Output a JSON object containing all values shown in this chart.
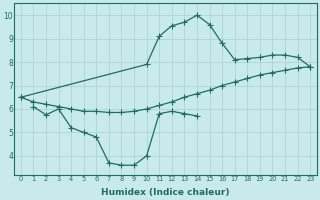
{
  "xlabel": "Humidex (Indice chaleur)",
  "bg_color": "#c8eaea",
  "line_color": "#1e6e60",
  "grid_color": "#a8d0d0",
  "xlim": [
    -0.5,
    23.5
  ],
  "ylim": [
    3.2,
    10.5
  ],
  "xticks": [
    0,
    1,
    2,
    3,
    4,
    5,
    6,
    7,
    8,
    9,
    10,
    11,
    12,
    13,
    14,
    15,
    16,
    17,
    18,
    19,
    20,
    21,
    22,
    23
  ],
  "yticks": [
    4,
    5,
    6,
    7,
    8,
    9,
    10
  ],
  "line_diagonal_x": [
    0,
    1,
    2,
    3,
    4,
    5,
    6,
    7,
    8,
    9,
    10,
    11,
    12,
    13,
    14,
    15,
    16,
    17,
    18,
    19,
    20,
    21,
    22,
    23
  ],
  "line_diagonal_y": [
    6.5,
    6.3,
    6.2,
    6.1,
    6.0,
    5.9,
    5.9,
    5.85,
    5.85,
    5.9,
    6.0,
    6.15,
    6.3,
    6.5,
    6.65,
    6.8,
    7.0,
    7.15,
    7.3,
    7.45,
    7.55,
    7.65,
    7.75,
    7.8
  ],
  "line_peak_x": [
    0,
    10,
    11,
    12,
    13,
    14,
    15,
    16,
    17,
    18,
    19,
    20,
    21,
    22,
    23
  ],
  "line_peak_y": [
    6.5,
    7.9,
    9.1,
    9.55,
    9.7,
    10.0,
    9.6,
    8.8,
    8.1,
    8.15,
    8.2,
    8.3,
    8.3,
    8.2,
    7.8
  ],
  "line_dip_x": [
    1,
    2,
    3,
    4,
    5,
    6,
    7,
    8,
    9,
    10,
    11,
    12,
    13,
    14
  ],
  "line_dip_y": [
    6.1,
    5.75,
    6.0,
    5.2,
    5.0,
    4.8,
    3.7,
    3.6,
    3.6,
    4.0,
    5.8,
    5.9,
    5.8,
    5.7
  ]
}
